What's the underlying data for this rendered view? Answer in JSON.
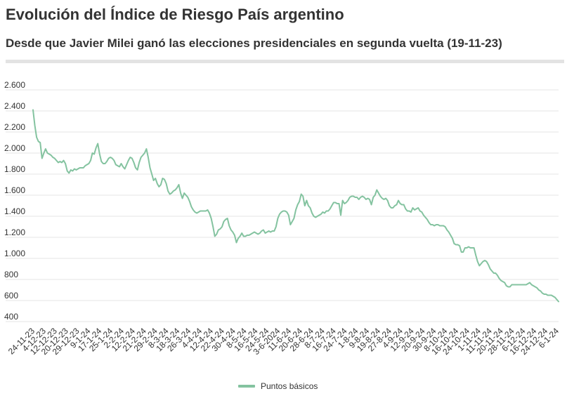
{
  "title": "Evolución del Índice de Riesgo País argentino",
  "subtitle": "Desde que Javier Milei ganó las elecciones presidenciales en segunda vuelta (19-11-23)",
  "colors": {
    "line": "#84c3a0",
    "grid": "#e5e5e5",
    "text": "#333333"
  },
  "chart_data": {
    "type": "line",
    "title": "Evolución del Índice de Riesgo País argentino",
    "subtitle": "Desde que Javier Milei ganó las elecciones presidenciales en segunda vuelta (19-11-23)",
    "xlabel": "",
    "ylabel": "",
    "ylim": [
      400,
      2600
    ],
    "y_ticks": [
      400,
      600,
      800,
      1000,
      1200,
      1400,
      1600,
      1800,
      2000,
      2200,
      2400,
      2600
    ],
    "y_tick_labels": [
      "400",
      "600",
      "800",
      "1.000",
      "1.200",
      "1.400",
      "1.600",
      "1.800",
      "2.000",
      "2.200",
      "2.400",
      "2.600"
    ],
    "grid": true,
    "legend_position": "bottom",
    "x_tick_labels": [
      "24-11-23",
      "4-12-23",
      "12-12-23",
      "20-12-23",
      "29-12-23",
      "9-1-24",
      "17-1-24",
      "25-1-24",
      "2-2-24",
      "12-2-24",
      "21-2-24",
      "29-2-24",
      "8-3-24",
      "18-3-24",
      "26-3-24",
      "4-4-24",
      "12-4-24",
      "22-4-24",
      "30-4-24",
      "8-5-24",
      "16-5-24",
      "24-5-24",
      "3-6-2024",
      "11-6-24",
      "20-6-24",
      "28-6-24",
      "8-7-24",
      "16-7-24",
      "24-7-24",
      "1-8-24",
      "9-8-24",
      "19-8-24",
      "27-8-24",
      "4-9-24",
      "12-9-24",
      "20-9-24",
      "30-9-24",
      "8-10-24",
      "16-10-24",
      "24-10-24",
      "1-11-24",
      "11-11-24",
      "20-11-24",
      "28-11-24",
      "6-12-24",
      "16-12-24",
      "24-12-24",
      "6-1-24"
    ],
    "series": [
      {
        "name": "Puntos básicos",
        "values": [
          2410,
          2260,
          2150,
          2110,
          2100,
          1950,
          2000,
          2040,
          2000,
          1990,
          1980,
          1960,
          1950,
          1930,
          1910,
          1920,
          1910,
          1930,
          1900,
          1830,
          1810,
          1840,
          1830,
          1850,
          1840,
          1850,
          1860,
          1860,
          1860,
          1880,
          1890,
          1900,
          1930,
          2000,
          1990,
          2050,
          2090,
          1990,
          1920,
          1900,
          1900,
          1920,
          1950,
          1960,
          1950,
          1930,
          1890,
          1880,
          1870,
          1900,
          1870,
          1850,
          1890,
          1930,
          1960,
          1950,
          1910,
          1860,
          1840,
          1910,
          1960,
          1980,
          2000,
          2040,
          1960,
          1860,
          1800,
          1740,
          1760,
          1710,
          1680,
          1700,
          1760,
          1750,
          1710,
          1640,
          1610,
          1620,
          1640,
          1650,
          1670,
          1700,
          1620,
          1570,
          1620,
          1600,
          1580,
          1540,
          1490,
          1460,
          1440,
          1430,
          1440,
          1450,
          1450,
          1450,
          1450,
          1460,
          1430,
          1380,
          1300,
          1210,
          1230,
          1270,
          1280,
          1300,
          1350,
          1370,
          1380,
          1310,
          1270,
          1250,
          1220,
          1150,
          1190,
          1210,
          1240,
          1210,
          1210,
          1220,
          1220,
          1230,
          1240,
          1250,
          1240,
          1230,
          1240,
          1260,
          1270,
          1240,
          1250,
          1260,
          1250,
          1260,
          1260,
          1300,
          1380,
          1420,
          1440,
          1450,
          1450,
          1440,
          1410,
          1320,
          1350,
          1380,
          1460,
          1510,
          1540,
          1610,
          1590,
          1500,
          1550,
          1500,
          1480,
          1430,
          1400,
          1390,
          1400,
          1410,
          1420,
          1440,
          1430,
          1450,
          1450,
          1470,
          1500,
          1530,
          1530,
          1520,
          1520,
          1410,
          1550,
          1520,
          1530,
          1550,
          1580,
          1590,
          1590,
          1580,
          1580,
          1560,
          1580,
          1590,
          1580,
          1560,
          1570,
          1560,
          1510,
          1580,
          1600,
          1650,
          1620,
          1590,
          1570,
          1560,
          1570,
          1550,
          1500,
          1480,
          1480,
          1500,
          1510,
          1550,
          1520,
          1510,
          1510,
          1470,
          1450,
          1450,
          1440,
          1480,
          1460,
          1470,
          1480,
          1450,
          1440,
          1410,
          1390,
          1370,
          1340,
          1320,
          1320,
          1310,
          1320,
          1320,
          1310,
          1310,
          1310,
          1300,
          1270,
          1250,
          1220,
          1190,
          1140,
          1130,
          1130,
          1120,
          1060,
          1060,
          1100,
          1100,
          1110,
          1100,
          1100,
          1100,
          1030,
          970,
          930,
          950,
          970,
          980,
          970,
          940,
          900,
          880,
          860,
          860,
          840,
          810,
          790,
          780,
          770,
          740,
          730,
          730,
          750,
          750,
          750,
          750,
          750,
          750,
          750,
          750,
          750,
          760,
          770,
          750,
          740,
          730,
          720,
          700,
          690,
          670,
          660,
          660,
          650,
          650,
          650,
          640,
          630,
          610,
          590
        ]
      }
    ]
  }
}
